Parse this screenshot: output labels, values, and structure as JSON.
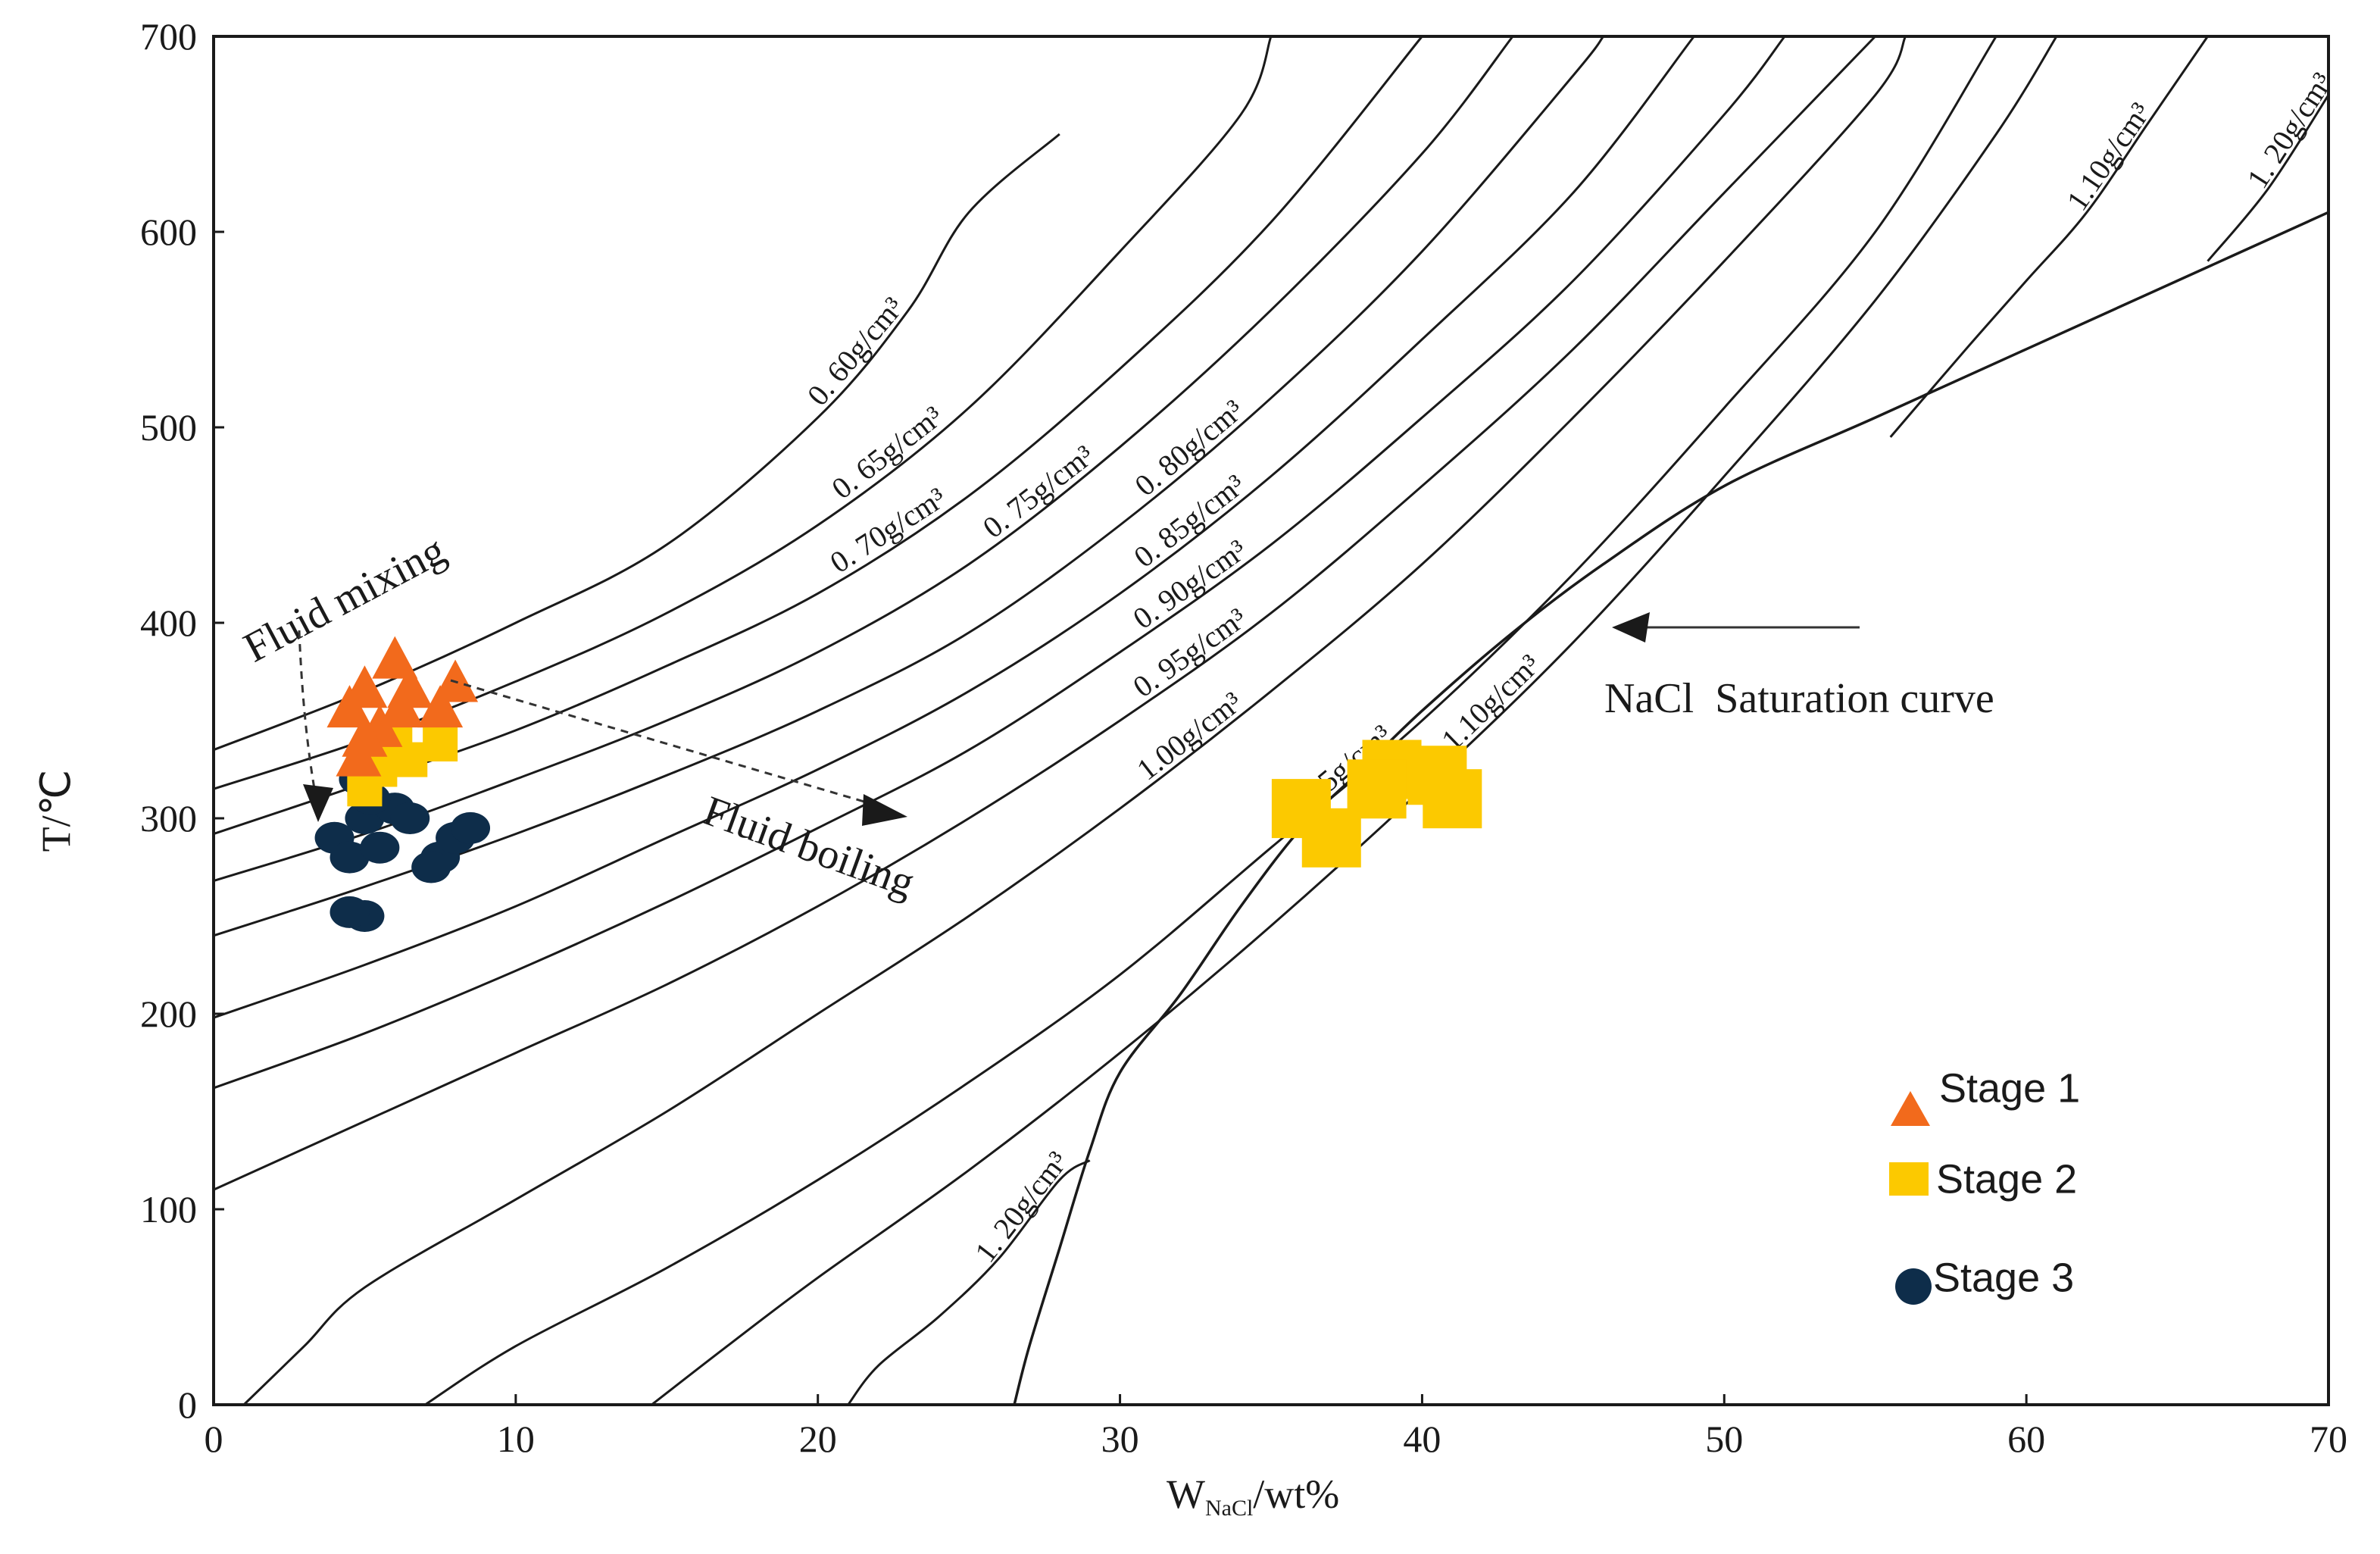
{
  "chart_data": {
    "type": "scatter",
    "xlabel_main": "W",
    "xlabel_sub": "NaCl",
    "xlabel_tail": "/wt%",
    "ylabel": "T/℃",
    "xlim": [
      0,
      70
    ],
    "ylim": [
      0,
      700
    ],
    "x_ticks": [
      0,
      10,
      20,
      30,
      40,
      50,
      60,
      70
    ],
    "y_ticks": [
      0,
      100,
      200,
      300,
      400,
      500,
      600,
      700
    ],
    "colors": {
      "stage1": "#f26a1c",
      "stage2": "#fcc900",
      "stage3": "#0e2d4a",
      "curve": "#1a1a1a"
    },
    "isochores": [
      {
        "label": "0. 60g/cm³",
        "points": [
          [
            0,
            335
          ],
          [
            5,
            365
          ],
          [
            10,
            400
          ],
          [
            15,
            440
          ],
          [
            20,
            505
          ],
          [
            23,
            560
          ],
          [
            25,
            610
          ],
          [
            28,
            650
          ]
        ]
      },
      {
        "label": "0. 65g/cm³",
        "points": [
          [
            0,
            315
          ],
          [
            5,
            340
          ],
          [
            10,
            370
          ],
          [
            15,
            405
          ],
          [
            20,
            450
          ],
          [
            25,
            510
          ],
          [
            30,
            590
          ],
          [
            34,
            660
          ],
          [
            35,
            700
          ]
        ]
      },
      {
        "label": "0. 70g/cm³",
        "points": [
          [
            0,
            292
          ],
          [
            5,
            318
          ],
          [
            10,
            345
          ],
          [
            15,
            378
          ],
          [
            20,
            415
          ],
          [
            25,
            465
          ],
          [
            30,
            530
          ],
          [
            35,
            605
          ],
          [
            40,
            700
          ]
        ]
      },
      {
        "label": "0. 75g/cm³",
        "points": [
          [
            0,
            268
          ],
          [
            5,
            292
          ],
          [
            10,
            320
          ],
          [
            15,
            350
          ],
          [
            20,
            385
          ],
          [
            25,
            430
          ],
          [
            30,
            490
          ],
          [
            35,
            560
          ],
          [
            40,
            640
          ],
          [
            43,
            700
          ]
        ]
      },
      {
        "label": "0. 80g/cm³",
        "points": [
          [
            0,
            240
          ],
          [
            5,
            265
          ],
          [
            10,
            292
          ],
          [
            15,
            322
          ],
          [
            20,
            355
          ],
          [
            25,
            395
          ],
          [
            30,
            450
          ],
          [
            35,
            515
          ],
          [
            40,
            590
          ],
          [
            45,
            680
          ],
          [
            46,
            700
          ]
        ]
      },
      {
        "label": "0. 85g/cm³",
        "points": [
          [
            0,
            198
          ],
          [
            5,
            225
          ],
          [
            10,
            255
          ],
          [
            15,
            290
          ],
          [
            20,
            325
          ],
          [
            25,
            365
          ],
          [
            30,
            415
          ],
          [
            35,
            475
          ],
          [
            40,
            545
          ],
          [
            45,
            620
          ],
          [
            49,
            700
          ]
        ]
      },
      {
        "label": "0. 90g/cm³",
        "points": [
          [
            0,
            162
          ],
          [
            5,
            190
          ],
          [
            10,
            222
          ],
          [
            15,
            257
          ],
          [
            20,
            295
          ],
          [
            25,
            335
          ],
          [
            30,
            385
          ],
          [
            35,
            440
          ],
          [
            40,
            505
          ],
          [
            45,
            575
          ],
          [
            50,
            660
          ],
          [
            52,
            700
          ]
        ]
      },
      {
        "label": "0. 95g/cm³",
        "points": [
          [
            0,
            110
          ],
          [
            5,
            145
          ],
          [
            10,
            180
          ],
          [
            15,
            215
          ],
          [
            20,
            255
          ],
          [
            25,
            300
          ],
          [
            30,
            350
          ],
          [
            35,
            405
          ],
          [
            40,
            470
          ],
          [
            45,
            540
          ],
          [
            50,
            620
          ],
          [
            55,
            700
          ]
        ]
      },
      {
        "label": "1.00g/cm³",
        "points": [
          [
            1,
            0
          ],
          [
            3,
            30
          ],
          [
            5,
            60
          ],
          [
            10,
            105
          ],
          [
            15,
            150
          ],
          [
            20,
            200
          ],
          [
            25,
            250
          ],
          [
            30,
            305
          ],
          [
            35,
            365
          ],
          [
            40,
            430
          ],
          [
            45,
            505
          ],
          [
            50,
            585
          ],
          [
            55,
            670
          ],
          [
            56,
            700
          ]
        ]
      },
      {
        "label": "1.05g/cm³",
        "points": [
          [
            7,
            0
          ],
          [
            10,
            30
          ],
          [
            15,
            70
          ],
          [
            20,
            115
          ],
          [
            25,
            165
          ],
          [
            30,
            220
          ],
          [
            35,
            285
          ],
          [
            40,
            350
          ],
          [
            45,
            425
          ],
          [
            50,
            510
          ],
          [
            55,
            600
          ],
          [
            59,
            700
          ]
        ]
      },
      {
        "label": "1.10g/cm³",
        "points": [
          [
            14.5,
            0
          ],
          [
            17,
            30
          ],
          [
            20,
            65
          ],
          [
            25,
            120
          ],
          [
            30,
            180
          ],
          [
            35,
            245
          ],
          [
            40,
            315
          ],
          [
            45,
            390
          ],
          [
            50,
            475
          ],
          [
            55,
            565
          ],
          [
            59,
            650
          ],
          [
            61,
            700
          ]
        ]
      },
      {
        "label": "1.10g/cm³",
        "points": [
          [
            55.5,
            495
          ],
          [
            58,
            540
          ],
          [
            60,
            575
          ],
          [
            62,
            610
          ],
          [
            64,
            655
          ],
          [
            66,
            700
          ]
        ]
      },
      {
        "label": "1. 20g/cm³",
        "points": [
          [
            21,
            0
          ],
          [
            22,
            20
          ],
          [
            24,
            45
          ],
          [
            26,
            75
          ],
          [
            28,
            115
          ],
          [
            29,
            125
          ]
        ]
      },
      {
        "label": "1. 20g/cm³",
        "points": [
          [
            66,
            585
          ],
          [
            68,
            622
          ],
          [
            70,
            670
          ]
        ]
      }
    ],
    "saturation_curve": {
      "label": "NaCl  Saturation curve",
      "points": [
        [
          26.5,
          0
        ],
        [
          27,
          30
        ],
        [
          28,
          80
        ],
        [
          29,
          130
        ],
        [
          30,
          170
        ],
        [
          32,
          210
        ],
        [
          34,
          255
        ],
        [
          36,
          295
        ],
        [
          38,
          325
        ],
        [
          40,
          355
        ],
        [
          43,
          395
        ],
        [
          46,
          430
        ],
        [
          50,
          470
        ],
        [
          55,
          505
        ],
        [
          60,
          540
        ],
        [
          65,
          575
        ],
        [
          70,
          610
        ]
      ]
    },
    "series": [
      {
        "name": "Stage 1",
        "marker": "triangle",
        "points": [
          [
            4.5,
            355
          ],
          [
            5,
            365
          ],
          [
            5.5,
            345
          ],
          [
            6,
            380
          ],
          [
            6.5,
            365
          ],
          [
            5,
            340
          ],
          [
            7.5,
            355
          ],
          [
            8,
            368
          ],
          [
            4.8,
            330
          ],
          [
            6.2,
            355
          ]
        ]
      },
      {
        "name": "Stage 2",
        "marker": "square",
        "points": [
          [
            5,
            320
          ],
          [
            5.5,
            325
          ],
          [
            6,
            340
          ],
          [
            6.5,
            330
          ],
          [
            7.5,
            338
          ],
          [
            5,
            315
          ],
          [
            36,
            305
          ],
          [
            37,
            290
          ],
          [
            39,
            325
          ],
          [
            40.5,
            322
          ],
          [
            41,
            310
          ],
          [
            38.5,
            315
          ]
        ]
      },
      {
        "name": "Stage 3",
        "marker": "circle",
        "points": [
          [
            4,
            290
          ],
          [
            4.5,
            280
          ],
          [
            5,
            300
          ],
          [
            5.5,
            285
          ],
          [
            6,
            305
          ],
          [
            6.5,
            300
          ],
          [
            4.8,
            320
          ],
          [
            5.2,
            310
          ],
          [
            7.5,
            280
          ],
          [
            8,
            290
          ],
          [
            8.5,
            295
          ],
          [
            7.2,
            275
          ],
          [
            5,
            250
          ],
          [
            4.5,
            252
          ]
        ]
      }
    ],
    "annotations": {
      "mixing": "Fluid mixing",
      "boiling": "Fluid boiling"
    }
  }
}
